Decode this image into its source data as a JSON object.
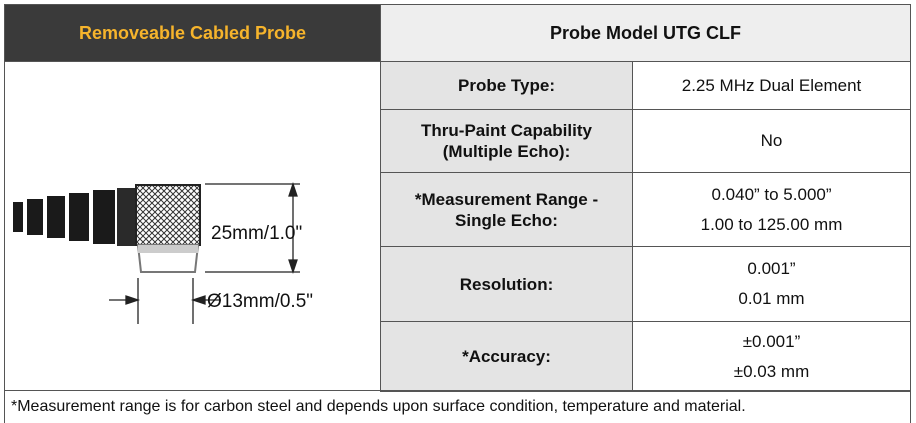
{
  "header": {
    "left_title": "Removeable Cabled Probe",
    "right_title": "Probe Model UTG CLF"
  },
  "diagram": {
    "height_label": "25mm/1.0\"",
    "diameter_label": "Ø13mm/0.5\""
  },
  "table": {
    "rows": [
      {
        "label": [
          "Probe Type:"
        ],
        "values": [
          "2.25 MHz Dual Element"
        ]
      },
      {
        "label": [
          "Thru-Paint Capability",
          "(Multiple Echo):"
        ],
        "values": [
          "No"
        ]
      },
      {
        "label": [
          "*Measurement Range -",
          "Single Echo:"
        ],
        "values": [
          "0.040” to 5.000”",
          "1.00 to 125.00 mm"
        ]
      },
      {
        "label": [
          "Resolution:"
        ],
        "values": [
          "0.001”",
          "0.01 mm"
        ]
      },
      {
        "label": [
          "*Accuracy:"
        ],
        "values": [
          "±0.001”",
          "±0.03 mm"
        ]
      }
    ]
  },
  "footnote": "*Measurement range is for carbon steel and depends upon surface condition, temperature and material."
}
